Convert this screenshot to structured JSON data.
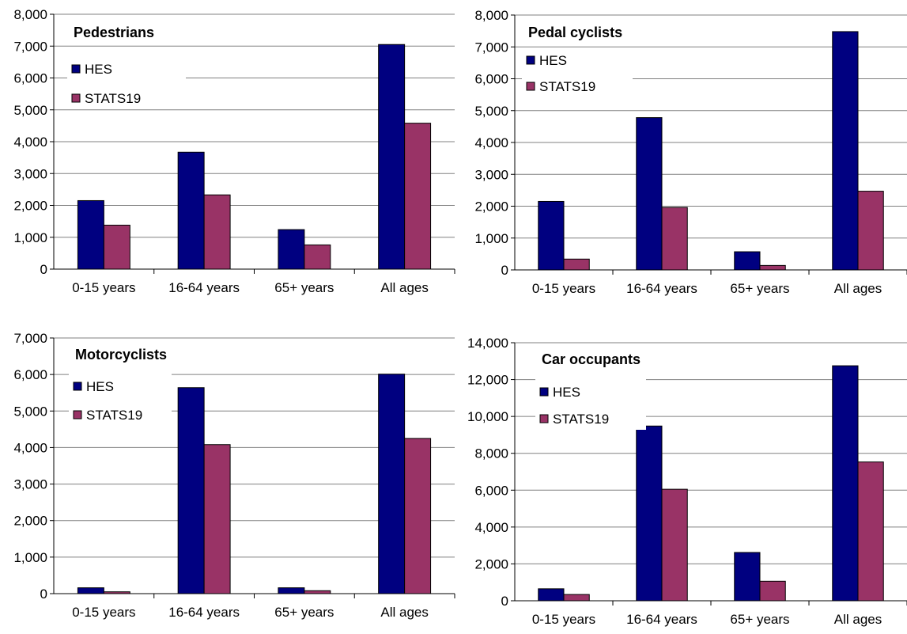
{
  "colors": {
    "hes": "#000080",
    "stats19": "#993366",
    "grid": "#808080",
    "axis": "#000000"
  },
  "chart_data": [
    {
      "type": "bar",
      "title": "Pedestrians",
      "categories": [
        "0-15 years",
        "16-64 years",
        "65+ years",
        "All ages"
      ],
      "series": [
        {
          "name": "HES",
          "values": [
            2150,
            3670,
            1240,
            7050
          ]
        },
        {
          "name": "STATS19",
          "values": [
            1380,
            2330,
            760,
            4580
          ]
        }
      ],
      "ylim": [
        0,
        8000
      ],
      "yticks": [
        0,
        1000,
        2000,
        3000,
        4000,
        5000,
        6000,
        7000,
        8000
      ],
      "ytick_labels": [
        "0",
        "1,000",
        "2,000",
        "3,000",
        "4,000",
        "5,000",
        "6,000",
        "7,000",
        "8,000"
      ],
      "grid": true,
      "legend": "top-left"
    },
    {
      "type": "bar",
      "title": "Pedal cyclists",
      "categories": [
        "0-15 years",
        "16-64 years",
        "65+ years",
        "All ages"
      ],
      "series": [
        {
          "name": "HES",
          "values": [
            2150,
            4780,
            570,
            7480
          ]
        },
        {
          "name": "STATS19",
          "values": [
            340,
            1960,
            140,
            2470
          ]
        }
      ],
      "ylim": [
        0,
        8000
      ],
      "yticks": [
        0,
        1000,
        2000,
        3000,
        4000,
        5000,
        6000,
        7000,
        8000
      ],
      "ytick_labels": [
        "0",
        "1,000",
        "2,000",
        "3,000",
        "4,000",
        "5,000",
        "6,000",
        "7,000",
        "8,000"
      ],
      "grid": true,
      "legend": "top-left"
    },
    {
      "type": "bar",
      "title": "Motorcyclists",
      "categories": [
        "0-15 years",
        "16-64 years",
        "65+ years",
        "All ages"
      ],
      "series": [
        {
          "name": "HES",
          "values": [
            160,
            5640,
            160,
            6010
          ]
        },
        {
          "name": "STATS19",
          "values": [
            50,
            4080,
            80,
            4250
          ]
        }
      ],
      "ylim": [
        0,
        7000
      ],
      "yticks": [
        0,
        1000,
        2000,
        3000,
        4000,
        5000,
        6000,
        7000
      ],
      "ytick_labels": [
        "0",
        "1,000",
        "2,000",
        "3,000",
        "4,000",
        "5,000",
        "6,000",
        "7,000"
      ],
      "grid": true,
      "legend": "top-left"
    },
    {
      "type": "bar",
      "title": "Car occupants",
      "categories": [
        "0-15 years",
        "16-64 years",
        "65+ years",
        "All ages"
      ],
      "series": [
        {
          "name": "HES",
          "values": [
            650,
            9480,
            2620,
            12750
          ]
        },
        {
          "name": "STATS19",
          "values": [
            340,
            6050,
            1060,
            7530
          ]
        }
      ],
      "ylim": [
        0,
        14000
      ],
      "yticks": [
        0,
        2000,
        4000,
        6000,
        8000,
        10000,
        12000,
        14000
      ],
      "ytick_labels": [
        "0",
        "2,000",
        "4,000",
        "6,000",
        "8,000",
        "10,000",
        "12,000",
        "14,000"
      ],
      "grid": true,
      "legend": "top-left"
    }
  ]
}
